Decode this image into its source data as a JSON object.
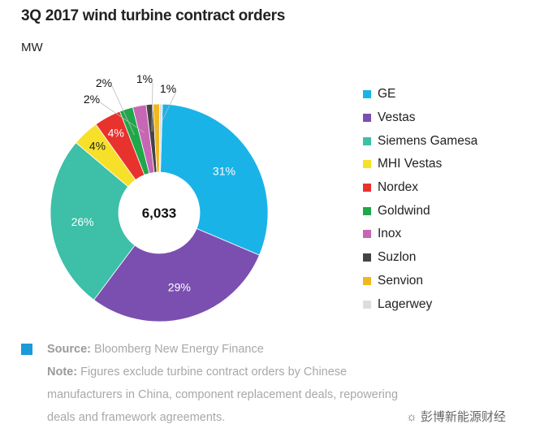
{
  "chart_data": {
    "type": "pie",
    "title": "3Q 2017 wind turbine contract orders",
    "unit": "MW",
    "center_label": "6,033",
    "donut": true,
    "start": "top, clockwise",
    "legend_position": "right",
    "slices": [
      {
        "name": "GE",
        "value": 31,
        "label": "31%",
        "color": "#1ab3e8"
      },
      {
        "name": "Vestas",
        "value": 29,
        "label": "29%",
        "color": "#7b4fb0"
      },
      {
        "name": "Siemens Gamesa",
        "value": 26,
        "label": "26%",
        "color": "#3dbfa8"
      },
      {
        "name": "MHI Vestas",
        "value": 4,
        "label": "4%",
        "color": "#f7e02a"
      },
      {
        "name": "Nordex",
        "value": 4,
        "label": "4%",
        "color": "#e8322d"
      },
      {
        "name": "Goldwind",
        "value": 2,
        "label": "2%",
        "color": "#1ea84a"
      },
      {
        "name": "Inox",
        "value": 2,
        "label": "2%",
        "color": "#c766b5"
      },
      {
        "name": "Suzlon",
        "value": 1,
        "label": "1%",
        "color": "#444444"
      },
      {
        "name": "Senvion",
        "value": 1,
        "label": "1%",
        "color": "#f0b820"
      },
      {
        "name": "Lagerwey",
        "value": 0.4,
        "label": "",
        "color": "#dddddd"
      }
    ]
  },
  "footer": {
    "source_label": "Source:",
    "source_text": " Bloomberg New Energy Finance",
    "note_label": "Note:",
    "note_line1": " Figures exclude turbine contract orders by Chinese",
    "note_line2": "manufacturers in China, component replacement deals, repowering",
    "note_line3": "deals and framework agreements.",
    "watermark": "彭博新能源财经"
  }
}
